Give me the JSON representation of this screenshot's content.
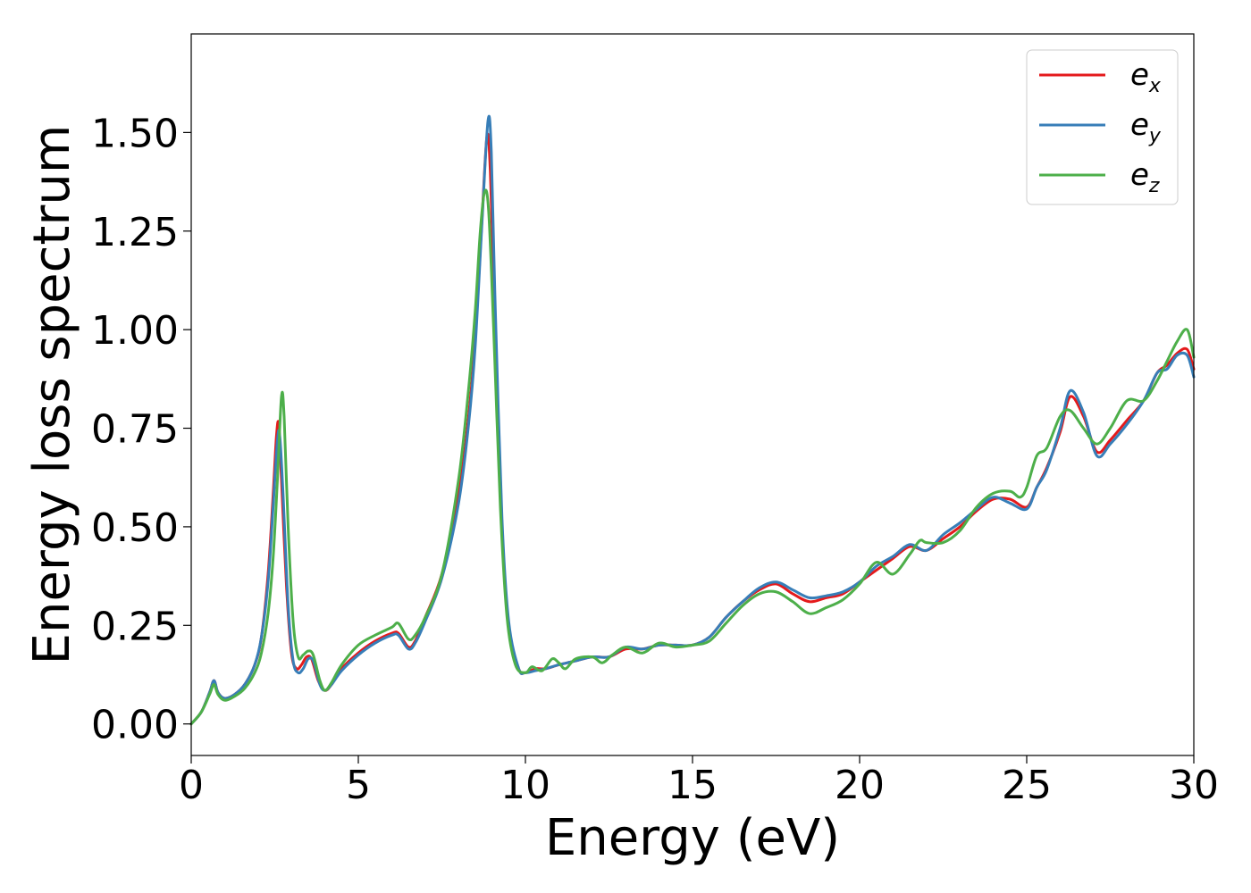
{
  "chart_data": {
    "type": "line",
    "xlabel": "Energy (eV)",
    "ylabel": "Energy loss spectrum",
    "xlim": [
      0,
      30
    ],
    "ylim": [
      -0.08,
      1.75
    ],
    "xticks": [
      0,
      5,
      10,
      15,
      20,
      25,
      30
    ],
    "xtick_labels": [
      "0",
      "5",
      "10",
      "15",
      "20",
      "25",
      "30"
    ],
    "yticks": [
      0.0,
      0.25,
      0.5,
      0.75,
      1.0,
      1.25,
      1.5
    ],
    "ytick_labels": [
      "0.00",
      "0.25",
      "0.50",
      "0.75",
      "1.00",
      "1.25",
      "1.50"
    ],
    "grid": false,
    "legend_position": "top-right",
    "series": [
      {
        "name": "e_x",
        "legend_base": "e",
        "legend_sub": "x",
        "color": "#e41a1c",
        "points": [
          [
            0,
            0
          ],
          [
            0.3,
            0.03
          ],
          [
            0.55,
            0.08
          ],
          [
            0.68,
            0.11
          ],
          [
            0.8,
            0.08
          ],
          [
            1.0,
            0.065
          ],
          [
            1.3,
            0.075
          ],
          [
            1.6,
            0.1
          ],
          [
            1.9,
            0.15
          ],
          [
            2.1,
            0.22
          ],
          [
            2.3,
            0.38
          ],
          [
            2.45,
            0.58
          ],
          [
            2.55,
            0.73
          ],
          [
            2.62,
            0.76
          ],
          [
            2.7,
            0.62
          ],
          [
            2.85,
            0.35
          ],
          [
            3.0,
            0.18
          ],
          [
            3.15,
            0.14
          ],
          [
            3.3,
            0.15
          ],
          [
            3.45,
            0.17
          ],
          [
            3.6,
            0.165
          ],
          [
            3.8,
            0.11
          ],
          [
            4.0,
            0.085
          ],
          [
            4.2,
            0.1
          ],
          [
            4.5,
            0.14
          ],
          [
            5.0,
            0.18
          ],
          [
            5.5,
            0.21
          ],
          [
            6.0,
            0.23
          ],
          [
            6.2,
            0.23
          ],
          [
            6.5,
            0.195
          ],
          [
            6.7,
            0.21
          ],
          [
            7.0,
            0.27
          ],
          [
            7.5,
            0.38
          ],
          [
            8.0,
            0.58
          ],
          [
            8.3,
            0.78
          ],
          [
            8.5,
            0.98
          ],
          [
            8.7,
            1.28
          ],
          [
            8.85,
            1.49
          ],
          [
            8.95,
            1.4
          ],
          [
            9.1,
            1.0
          ],
          [
            9.3,
            0.5
          ],
          [
            9.5,
            0.25
          ],
          [
            9.8,
            0.14
          ],
          [
            10.0,
            0.13
          ],
          [
            10.3,
            0.14
          ],
          [
            10.6,
            0.14
          ],
          [
            11.0,
            0.15
          ],
          [
            11.5,
            0.16
          ],
          [
            12.0,
            0.17
          ],
          [
            12.5,
            0.17
          ],
          [
            13.0,
            0.19
          ],
          [
            13.5,
            0.19
          ],
          [
            14.0,
            0.2
          ],
          [
            14.5,
            0.2
          ],
          [
            15.0,
            0.2
          ],
          [
            15.5,
            0.22
          ],
          [
            16.0,
            0.27
          ],
          [
            16.5,
            0.31
          ],
          [
            17.0,
            0.34
          ],
          [
            17.5,
            0.355
          ],
          [
            18.0,
            0.33
          ],
          [
            18.5,
            0.31
          ],
          [
            19.0,
            0.32
          ],
          [
            19.5,
            0.33
          ],
          [
            20.0,
            0.36
          ],
          [
            20.5,
            0.39
          ],
          [
            21.0,
            0.42
          ],
          [
            21.5,
            0.45
          ],
          [
            22.0,
            0.44
          ],
          [
            22.5,
            0.47
          ],
          [
            23.0,
            0.5
          ],
          [
            23.5,
            0.54
          ],
          [
            24.0,
            0.57
          ],
          [
            24.5,
            0.57
          ],
          [
            25.0,
            0.55
          ],
          [
            25.3,
            0.6
          ],
          [
            25.6,
            0.65
          ],
          [
            26.0,
            0.74
          ],
          [
            26.3,
            0.83
          ],
          [
            26.7,
            0.78
          ],
          [
            27.1,
            0.69
          ],
          [
            27.5,
            0.72
          ],
          [
            28.0,
            0.77
          ],
          [
            28.5,
            0.82
          ],
          [
            28.9,
            0.89
          ],
          [
            29.2,
            0.91
          ],
          [
            29.5,
            0.94
          ],
          [
            29.8,
            0.95
          ],
          [
            30.0,
            0.9
          ]
        ]
      },
      {
        "name": "e_y",
        "legend_base": "e",
        "legend_sub": "y",
        "color": "#377eb8",
        "points": [
          [
            0,
            0
          ],
          [
            0.3,
            0.03
          ],
          [
            0.55,
            0.08
          ],
          [
            0.68,
            0.11
          ],
          [
            0.8,
            0.08
          ],
          [
            1.0,
            0.065
          ],
          [
            1.3,
            0.075
          ],
          [
            1.6,
            0.1
          ],
          [
            1.9,
            0.15
          ],
          [
            2.1,
            0.22
          ],
          [
            2.3,
            0.36
          ],
          [
            2.45,
            0.55
          ],
          [
            2.58,
            0.72
          ],
          [
            2.65,
            0.73
          ],
          [
            2.75,
            0.58
          ],
          [
            2.9,
            0.3
          ],
          [
            3.05,
            0.16
          ],
          [
            3.2,
            0.13
          ],
          [
            3.35,
            0.14
          ],
          [
            3.5,
            0.165
          ],
          [
            3.65,
            0.16
          ],
          [
            3.85,
            0.1
          ],
          [
            4.0,
            0.085
          ],
          [
            4.2,
            0.1
          ],
          [
            4.5,
            0.135
          ],
          [
            5.0,
            0.175
          ],
          [
            5.5,
            0.205
          ],
          [
            6.0,
            0.225
          ],
          [
            6.2,
            0.225
          ],
          [
            6.5,
            0.19
          ],
          [
            6.7,
            0.205
          ],
          [
            7.0,
            0.26
          ],
          [
            7.5,
            0.37
          ],
          [
            8.0,
            0.56
          ],
          [
            8.3,
            0.76
          ],
          [
            8.5,
            0.96
          ],
          [
            8.7,
            1.27
          ],
          [
            8.88,
            1.53
          ],
          [
            8.98,
            1.45
          ],
          [
            9.1,
            1.05
          ],
          [
            9.3,
            0.52
          ],
          [
            9.5,
            0.26
          ],
          [
            9.8,
            0.14
          ],
          [
            10.0,
            0.13
          ],
          [
            10.3,
            0.135
          ],
          [
            10.6,
            0.14
          ],
          [
            11.0,
            0.15
          ],
          [
            11.5,
            0.16
          ],
          [
            12.0,
            0.17
          ],
          [
            12.5,
            0.17
          ],
          [
            13.0,
            0.195
          ],
          [
            13.5,
            0.19
          ],
          [
            14.0,
            0.2
          ],
          [
            14.5,
            0.2
          ],
          [
            15.0,
            0.2
          ],
          [
            15.5,
            0.22
          ],
          [
            16.0,
            0.27
          ],
          [
            16.5,
            0.31
          ],
          [
            17.0,
            0.345
          ],
          [
            17.5,
            0.36
          ],
          [
            18.0,
            0.34
          ],
          [
            18.5,
            0.32
          ],
          [
            19.0,
            0.325
          ],
          [
            19.5,
            0.335
          ],
          [
            20.0,
            0.36
          ],
          [
            20.5,
            0.4
          ],
          [
            21.0,
            0.425
          ],
          [
            21.5,
            0.455
          ],
          [
            22.0,
            0.44
          ],
          [
            22.5,
            0.48
          ],
          [
            23.0,
            0.51
          ],
          [
            23.5,
            0.545
          ],
          [
            24.0,
            0.575
          ],
          [
            24.5,
            0.56
          ],
          [
            25.0,
            0.545
          ],
          [
            25.3,
            0.6
          ],
          [
            25.6,
            0.645
          ],
          [
            26.0,
            0.75
          ],
          [
            26.3,
            0.845
          ],
          [
            26.7,
            0.79
          ],
          [
            27.1,
            0.68
          ],
          [
            27.5,
            0.71
          ],
          [
            28.0,
            0.76
          ],
          [
            28.5,
            0.82
          ],
          [
            28.9,
            0.89
          ],
          [
            29.2,
            0.9
          ],
          [
            29.5,
            0.935
          ],
          [
            29.8,
            0.935
          ],
          [
            30.0,
            0.88
          ]
        ]
      },
      {
        "name": "e_z",
        "legend_base": "e",
        "legend_sub": "z",
        "color": "#4daf4a",
        "points": [
          [
            0,
            0
          ],
          [
            0.3,
            0.03
          ],
          [
            0.55,
            0.075
          ],
          [
            0.68,
            0.1
          ],
          [
            0.8,
            0.075
          ],
          [
            1.0,
            0.06
          ],
          [
            1.3,
            0.07
          ],
          [
            1.6,
            0.09
          ],
          [
            1.9,
            0.13
          ],
          [
            2.1,
            0.18
          ],
          [
            2.3,
            0.28
          ],
          [
            2.45,
            0.42
          ],
          [
            2.58,
            0.62
          ],
          [
            2.7,
            0.83
          ],
          [
            2.78,
            0.78
          ],
          [
            2.9,
            0.5
          ],
          [
            3.05,
            0.26
          ],
          [
            3.2,
            0.17
          ],
          [
            3.35,
            0.175
          ],
          [
            3.5,
            0.185
          ],
          [
            3.65,
            0.175
          ],
          [
            3.85,
            0.11
          ],
          [
            4.0,
            0.085
          ],
          [
            4.2,
            0.105
          ],
          [
            4.5,
            0.15
          ],
          [
            5.0,
            0.2
          ],
          [
            5.5,
            0.225
          ],
          [
            6.0,
            0.245
          ],
          [
            6.2,
            0.255
          ],
          [
            6.5,
            0.215
          ],
          [
            6.7,
            0.225
          ],
          [
            7.0,
            0.27
          ],
          [
            7.5,
            0.38
          ],
          [
            8.0,
            0.62
          ],
          [
            8.3,
            0.85
          ],
          [
            8.5,
            1.05
          ],
          [
            8.65,
            1.25
          ],
          [
            8.78,
            1.35
          ],
          [
            8.9,
            1.3
          ],
          [
            9.05,
            1.0
          ],
          [
            9.25,
            0.55
          ],
          [
            9.45,
            0.27
          ],
          [
            9.7,
            0.15
          ],
          [
            10.0,
            0.13
          ],
          [
            10.2,
            0.145
          ],
          [
            10.5,
            0.135
          ],
          [
            10.8,
            0.165
          ],
          [
            11.0,
            0.155
          ],
          [
            11.2,
            0.14
          ],
          [
            11.5,
            0.165
          ],
          [
            12.0,
            0.17
          ],
          [
            12.3,
            0.155
          ],
          [
            12.6,
            0.175
          ],
          [
            13.0,
            0.195
          ],
          [
            13.5,
            0.18
          ],
          [
            14.0,
            0.205
          ],
          [
            14.5,
            0.195
          ],
          [
            15.0,
            0.2
          ],
          [
            15.5,
            0.21
          ],
          [
            16.0,
            0.255
          ],
          [
            16.5,
            0.3
          ],
          [
            17.0,
            0.33
          ],
          [
            17.5,
            0.335
          ],
          [
            18.0,
            0.31
          ],
          [
            18.5,
            0.28
          ],
          [
            19.0,
            0.295
          ],
          [
            19.5,
            0.315
          ],
          [
            20.0,
            0.355
          ],
          [
            20.5,
            0.41
          ],
          [
            21.0,
            0.38
          ],
          [
            21.5,
            0.43
          ],
          [
            21.8,
            0.465
          ],
          [
            22.0,
            0.46
          ],
          [
            22.5,
            0.46
          ],
          [
            23.0,
            0.49
          ],
          [
            23.5,
            0.55
          ],
          [
            24.0,
            0.585
          ],
          [
            24.5,
            0.59
          ],
          [
            24.8,
            0.575
          ],
          [
            25.0,
            0.6
          ],
          [
            25.3,
            0.68
          ],
          [
            25.6,
            0.7
          ],
          [
            26.0,
            0.78
          ],
          [
            26.3,
            0.795
          ],
          [
            26.7,
            0.75
          ],
          [
            27.1,
            0.71
          ],
          [
            27.5,
            0.75
          ],
          [
            28.0,
            0.82
          ],
          [
            28.5,
            0.82
          ],
          [
            28.9,
            0.87
          ],
          [
            29.2,
            0.92
          ],
          [
            29.5,
            0.97
          ],
          [
            29.8,
            1.0
          ],
          [
            30.0,
            0.93
          ]
        ]
      }
    ]
  }
}
